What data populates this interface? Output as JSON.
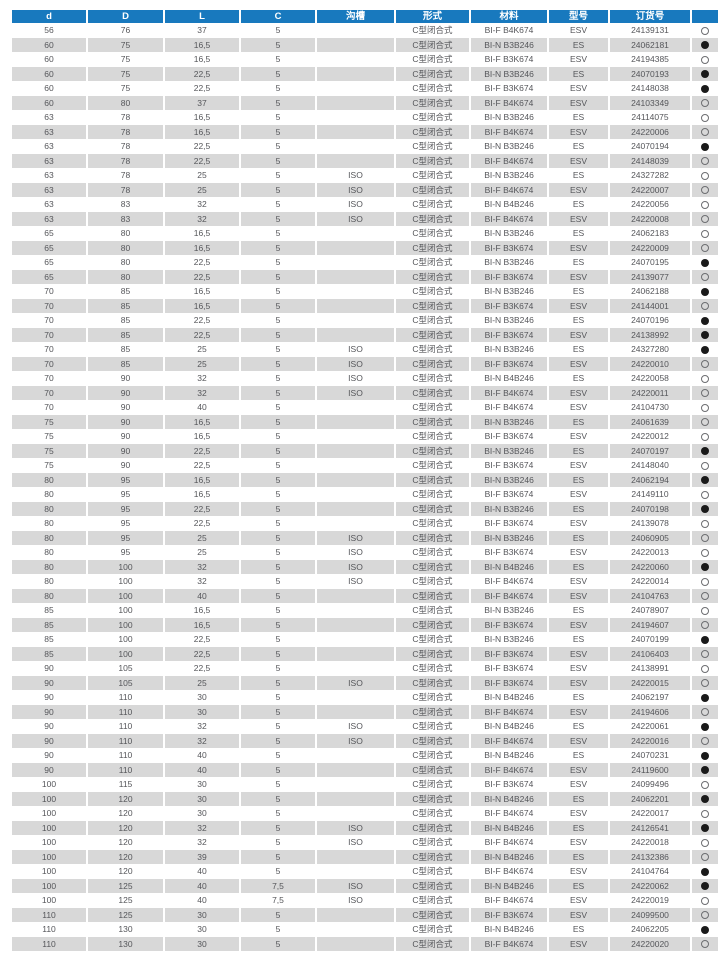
{
  "colors": {
    "header_bg": "#1879be",
    "row_alt": "#d8d8d8",
    "text": "#55565a",
    "dot_fill": "#1a1a1a",
    "dot_border": "#6d6e71"
  },
  "table": {
    "headers": [
      "d",
      "D",
      "L",
      "C",
      "沟槽",
      "形式",
      "材料",
      "型号",
      "订货号",
      ""
    ],
    "symbols": {
      "open": "○",
      "filled": "●"
    },
    "rows": [
      [
        "56",
        "76",
        "37",
        "5",
        "",
        "C型闭合式",
        "BI-F B4K674",
        "ESV",
        "24139131",
        "open"
      ],
      [
        "60",
        "75",
        "16,5",
        "5",
        "",
        "C型闭合式",
        "BI-N B3B246",
        "ES",
        "24062181",
        "filled"
      ],
      [
        "60",
        "75",
        "16,5",
        "5",
        "",
        "C型闭合式",
        "BI-F B3K674",
        "ESV",
        "24194385",
        "open"
      ],
      [
        "60",
        "75",
        "22,5",
        "5",
        "",
        "C型闭合式",
        "BI-N B3B246",
        "ES",
        "24070193",
        "filled"
      ],
      [
        "60",
        "75",
        "22,5",
        "5",
        "",
        "C型闭合式",
        "BI-F B3K674",
        "ESV",
        "24148038",
        "filled"
      ],
      [
        "60",
        "80",
        "37",
        "5",
        "",
        "C型闭合式",
        "BI-F B4K674",
        "ESV",
        "24103349",
        "open"
      ],
      [
        "63",
        "78",
        "16,5",
        "5",
        "",
        "C型闭合式",
        "BI-N B3B246",
        "ES",
        "24114075",
        "open"
      ],
      [
        "63",
        "78",
        "16,5",
        "5",
        "",
        "C型闭合式",
        "BI-F B4K674",
        "ESV",
        "24220006",
        "open"
      ],
      [
        "63",
        "78",
        "22,5",
        "5",
        "",
        "C型闭合式",
        "BI-N B3B246",
        "ES",
        "24070194",
        "filled"
      ],
      [
        "63",
        "78",
        "22,5",
        "5",
        "",
        "C型闭合式",
        "BI-F B4K674",
        "ESV",
        "24148039",
        "open"
      ],
      [
        "63",
        "78",
        "25",
        "5",
        "ISO",
        "C型闭合式",
        "BI-N B3B246",
        "ES",
        "24327282",
        "open"
      ],
      [
        "63",
        "78",
        "25",
        "5",
        "ISO",
        "C型闭合式",
        "BI-F B4K674",
        "ESV",
        "24220007",
        "open"
      ],
      [
        "63",
        "83",
        "32",
        "5",
        "ISO",
        "C型闭合式",
        "BI-N B4B246",
        "ES",
        "24220056",
        "open"
      ],
      [
        "63",
        "83",
        "32",
        "5",
        "ISO",
        "C型闭合式",
        "BI-F B4K674",
        "ESV",
        "24220008",
        "open"
      ],
      [
        "65",
        "80",
        "16,5",
        "5",
        "",
        "C型闭合式",
        "BI-N B3B246",
        "ES",
        "24062183",
        "open"
      ],
      [
        "65",
        "80",
        "16,5",
        "5",
        "",
        "C型闭合式",
        "BI-F B3K674",
        "ESV",
        "24220009",
        "open"
      ],
      [
        "65",
        "80",
        "22,5",
        "5",
        "",
        "C型闭合式",
        "BI-N B3B246",
        "ES",
        "24070195",
        "filled"
      ],
      [
        "65",
        "80",
        "22,5",
        "5",
        "",
        "C型闭合式",
        "BI-F B3K674",
        "ESV",
        "24139077",
        "open"
      ],
      [
        "70",
        "85",
        "16,5",
        "5",
        "",
        "C型闭合式",
        "BI-N B3B246",
        "ES",
        "24062188",
        "filled"
      ],
      [
        "70",
        "85",
        "16,5",
        "5",
        "",
        "C型闭合式",
        "BI-F B3K674",
        "ESV",
        "24144001",
        "open"
      ],
      [
        "70",
        "85",
        "22,5",
        "5",
        "",
        "C型闭合式",
        "BI-N B3B246",
        "ES",
        "24070196",
        "filled"
      ],
      [
        "70",
        "85",
        "22,5",
        "5",
        "",
        "C型闭合式",
        "BI-F B3K674",
        "ESV",
        "24138992",
        "filled"
      ],
      [
        "70",
        "85",
        "25",
        "5",
        "ISO",
        "C型闭合式",
        "BI-N B3B246",
        "ES",
        "24327280",
        "filled"
      ],
      [
        "70",
        "85",
        "25",
        "5",
        "ISO",
        "C型闭合式",
        "BI-F B3K674",
        "ESV",
        "24220010",
        "open"
      ],
      [
        "70",
        "90",
        "32",
        "5",
        "ISO",
        "C型闭合式",
        "BI-N B4B246",
        "ES",
        "24220058",
        "open"
      ],
      [
        "70",
        "90",
        "32",
        "5",
        "ISO",
        "C型闭合式",
        "BI-F B4K674",
        "ESV",
        "24220011",
        "open"
      ],
      [
        "70",
        "90",
        "40",
        "5",
        "",
        "C型闭合式",
        "BI-F B4K674",
        "ESV",
        "24104730",
        "open"
      ],
      [
        "75",
        "90",
        "16,5",
        "5",
        "",
        "C型闭合式",
        "BI-N B3B246",
        "ES",
        "24061639",
        "open"
      ],
      [
        "75",
        "90",
        "16,5",
        "5",
        "",
        "C型闭合式",
        "BI-F B3K674",
        "ESV",
        "24220012",
        "open"
      ],
      [
        "75",
        "90",
        "22,5",
        "5",
        "",
        "C型闭合式",
        "BI-N B3B246",
        "ES",
        "24070197",
        "filled"
      ],
      [
        "75",
        "90",
        "22,5",
        "5",
        "",
        "C型闭合式",
        "BI-F B3K674",
        "ESV",
        "24148040",
        "open"
      ],
      [
        "80",
        "95",
        "16,5",
        "5",
        "",
        "C型闭合式",
        "BI-N B3B246",
        "ES",
        "24062194",
        "filled"
      ],
      [
        "80",
        "95",
        "16,5",
        "5",
        "",
        "C型闭合式",
        "BI-F B3K674",
        "ESV",
        "24149110",
        "open"
      ],
      [
        "80",
        "95",
        "22,5",
        "5",
        "",
        "C型闭合式",
        "BI-N B3B246",
        "ES",
        "24070198",
        "filled"
      ],
      [
        "80",
        "95",
        "22,5",
        "5",
        "",
        "C型闭合式",
        "BI-F B3K674",
        "ESV",
        "24139078",
        "open"
      ],
      [
        "80",
        "95",
        "25",
        "5",
        "ISO",
        "C型闭合式",
        "BI-N B3B246",
        "ES",
        "24060905",
        "open"
      ],
      [
        "80",
        "95",
        "25",
        "5",
        "ISO",
        "C型闭合式",
        "BI-F B3K674",
        "ESV",
        "24220013",
        "open"
      ],
      [
        "80",
        "100",
        "32",
        "5",
        "ISO",
        "C型闭合式",
        "BI-N B4B246",
        "ES",
        "24220060",
        "filled"
      ],
      [
        "80",
        "100",
        "32",
        "5",
        "ISO",
        "C型闭合式",
        "BI-F B4K674",
        "ESV",
        "24220014",
        "open"
      ],
      [
        "80",
        "100",
        "40",
        "5",
        "",
        "C型闭合式",
        "BI-F B4K674",
        "ESV",
        "24104763",
        "open"
      ],
      [
        "85",
        "100",
        "16,5",
        "5",
        "",
        "C型闭合式",
        "BI-N B3B246",
        "ES",
        "24078907",
        "open"
      ],
      [
        "85",
        "100",
        "16,5",
        "5",
        "",
        "C型闭合式",
        "BI-F B3K674",
        "ESV",
        "24194607",
        "open"
      ],
      [
        "85",
        "100",
        "22,5",
        "5",
        "",
        "C型闭合式",
        "BI-N B3B246",
        "ES",
        "24070199",
        "filled"
      ],
      [
        "85",
        "100",
        "22,5",
        "5",
        "",
        "C型闭合式",
        "BI-F B3K674",
        "ESV",
        "24106403",
        "open"
      ],
      [
        "90",
        "105",
        "22,5",
        "5",
        "",
        "C型闭合式",
        "BI-F B3K674",
        "ESV",
        "24138991",
        "open"
      ],
      [
        "90",
        "105",
        "25",
        "5",
        "ISO",
        "C型闭合式",
        "BI-F B3K674",
        "ESV",
        "24220015",
        "open"
      ],
      [
        "90",
        "110",
        "30",
        "5",
        "",
        "C型闭合式",
        "BI-N B4B246",
        "ES",
        "24062197",
        "filled"
      ],
      [
        "90",
        "110",
        "30",
        "5",
        "",
        "C型闭合式",
        "BI-F B4K674",
        "ESV",
        "24194606",
        "open"
      ],
      [
        "90",
        "110",
        "32",
        "5",
        "ISO",
        "C型闭合式",
        "BI-N B4B246",
        "ES",
        "24220061",
        "filled"
      ],
      [
        "90",
        "110",
        "32",
        "5",
        "ISO",
        "C型闭合式",
        "BI-F B4K674",
        "ESV",
        "24220016",
        "open"
      ],
      [
        "90",
        "110",
        "40",
        "5",
        "",
        "C型闭合式",
        "BI-N B4B246",
        "ES",
        "24070231",
        "filled"
      ],
      [
        "90",
        "110",
        "40",
        "5",
        "",
        "C型闭合式",
        "BI-F B4K674",
        "ESV",
        "24119600",
        "filled"
      ],
      [
        "100",
        "115",
        "30",
        "5",
        "",
        "C型闭合式",
        "BI-F B3K674",
        "ESV",
        "24099496",
        "open"
      ],
      [
        "100",
        "120",
        "30",
        "5",
        "",
        "C型闭合式",
        "BI-N B4B246",
        "ES",
        "24062201",
        "filled"
      ],
      [
        "100",
        "120",
        "30",
        "5",
        "",
        "C型闭合式",
        "BI-F B4K674",
        "ESV",
        "24220017",
        "open"
      ],
      [
        "100",
        "120",
        "32",
        "5",
        "ISO",
        "C型闭合式",
        "BI-N B4B246",
        "ES",
        "24126541",
        "filled"
      ],
      [
        "100",
        "120",
        "32",
        "5",
        "ISO",
        "C型闭合式",
        "BI-F B4K674",
        "ESV",
        "24220018",
        "open"
      ],
      [
        "100",
        "120",
        "39",
        "5",
        "",
        "C型闭合式",
        "BI-N B4B246",
        "ES",
        "24132386",
        "open"
      ],
      [
        "100",
        "120",
        "40",
        "5",
        "",
        "C型闭合式",
        "BI-F B4K674",
        "ESV",
        "24104764",
        "filled"
      ],
      [
        "100",
        "125",
        "40",
        "7,5",
        "ISO",
        "C型闭合式",
        "BI-N B4B246",
        "ES",
        "24220062",
        "filled"
      ],
      [
        "100",
        "125",
        "40",
        "7,5",
        "ISO",
        "C型闭合式",
        "BI-F B4K674",
        "ESV",
        "24220019",
        "open"
      ],
      [
        "110",
        "125",
        "30",
        "5",
        "",
        "C型闭合式",
        "BI-F B3K674",
        "ESV",
        "24099500",
        "open"
      ],
      [
        "110",
        "130",
        "30",
        "5",
        "",
        "C型闭合式",
        "BI-N B4B246",
        "ES",
        "24062205",
        "filled"
      ],
      [
        "110",
        "130",
        "30",
        "5",
        "",
        "C型闭合式",
        "BI-F B4K674",
        "ESV",
        "24220020",
        "open"
      ]
    ]
  }
}
